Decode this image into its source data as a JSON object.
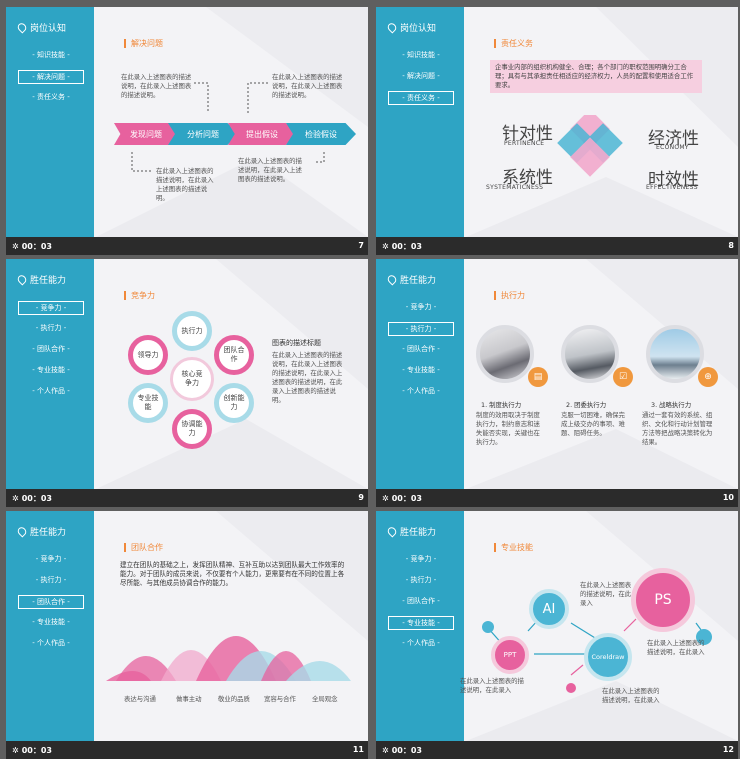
{
  "sidebar_title_7": "岗位认知",
  "sidebar_title_9": "胜任能力",
  "slides": {
    "s7": {
      "menu": [
        "知识技能",
        "解决问题",
        "责任义务"
      ],
      "active": 1,
      "section": "解决问题",
      "steps": [
        "发现问题",
        "分析问题",
        "提出假设",
        "检验假设"
      ],
      "text_a": "在此录入上述图表的描述说明，在此录入上述图表的描述说明。",
      "text_b": "在此录入上述图表的描述说明，在此录入上述图表的描述说明。",
      "text_c": "在此录入上述图表的描述说明，在此录入上述图表的描述说明。",
      "text_d": "在此录入上述图表的描述说明，在此录入上述图表的描述说明。",
      "time": "00：03",
      "page": "7"
    },
    "s8": {
      "menu": [
        "知识技能",
        "解决问题",
        "责任义务"
      ],
      "active": 2,
      "section": "责任义务",
      "intro": "企事业内部的组织机构健全、合理；各个部门的职权范围明确分工合理；具有与其承担责任相适应的经济权力，人员的配置和使用适合工作要求。",
      "w1": "针对性",
      "s1": "PERTINENCE",
      "w2": "经济性",
      "s2": "ECONOMY",
      "w3": "系统性",
      "s3": "SYSTEMATICNESS",
      "w4": "时效性",
      "s4": "EFFECTIVENESS",
      "time": "00：03",
      "page": "8"
    },
    "s9": {
      "menu": [
        "竞争力",
        "执行力",
        "团队合作",
        "专业技能",
        "个人作品"
      ],
      "active": 0,
      "section": "竞争力",
      "core": "核心竞争力",
      "petals": [
        "执行力",
        "团队合作",
        "创新能力",
        "协调能力",
        "专业技能",
        "领导力"
      ],
      "desc_title": "图表的描述标题",
      "desc": "在此录入上述图表的描述说明，在此录入上述图表的描述说明，在此录入上述图表的描述说明，在此录入上述图表的描述说明。",
      "time": "00：03",
      "page": "9"
    },
    "s10": {
      "menu": [
        "竞争力",
        "执行力",
        "团队合作",
        "专业技能",
        "个人作品"
      ],
      "active": 1,
      "section": "执行力",
      "c1_title": "1. 制度执行力",
      "c1": "制度的效用取决于制度执行力，制约意志和迷失能否实现，关键也在执行力。",
      "c2_title": "2. 团委执行力",
      "c2": "克服一切困难，确保完成上级交办的事项、难题、阻碍任务。",
      "c3_title": "3. 战略执行力",
      "c3": "通过一套有效的系统、组织、文化和行动计划管理方法等把战略决策转化为结果。",
      "time": "00：03",
      "page": "10"
    },
    "s11": {
      "menu": [
        "竞争力",
        "执行力",
        "团队合作",
        "专业技能",
        "个人作品"
      ],
      "active": 2,
      "section": "团队合作",
      "para": "建立在团队的基础之上，发挥团队精神、互补互助以达到团队最大工作效率的能力。对于团队的成员来说，不仅要有个人能力，更需要有在不同的位置上各尽所能、与其他成员协调合作的能力。",
      "labels": [
        "表达与沟通",
        "做事主动",
        "敬业的品质",
        "宽容与合作",
        "全局观念"
      ],
      "time": "00：03",
      "page": "11"
    },
    "s12": {
      "menu": [
        "竞争力",
        "执行力",
        "团队合作",
        "专业技能",
        "个人作品"
      ],
      "active": 3,
      "section": "专业技能",
      "b_ai": "AI",
      "b_ps": "PS",
      "b_ppt": "PPT",
      "b_cd": "Coreldraw",
      "t1": "在此录入上述图表的描述说明，在此录入",
      "t2": "在此录入上述图表的描述说明，在此录入",
      "t3": "在此录入上述图表的描述说明，在此录入",
      "t4": "在此录入上述图表的描述说明，在此录入",
      "time": "00：03",
      "page": "12"
    }
  },
  "colors": {
    "blue": "#2ea4c4",
    "pink": "#e7619e",
    "orange": "#f0883a"
  }
}
